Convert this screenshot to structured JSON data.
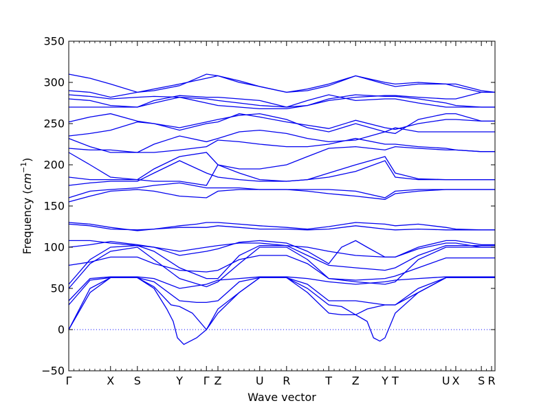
{
  "chart_data": {
    "type": "line",
    "xlabel": "Wave vector",
    "ylabel": "Frequency",
    "ylabel_unit": "cm",
    "ylabel_exp": "−1",
    "ylim": [
      -50,
      350
    ],
    "yticks": [
      -50,
      0,
      50,
      100,
      150,
      200,
      250,
      300,
      350
    ],
    "grid": false,
    "legend": "none",
    "x_range": [
      0,
      1
    ],
    "high_symmetry_points": [
      {
        "label": "Γ",
        "x": 0.0
      },
      {
        "label": "X",
        "x": 0.098
      },
      {
        "label": "S",
        "x": 0.161
      },
      {
        "label": "Y",
        "x": 0.26
      },
      {
        "label": "Γ",
        "x": 0.323
      },
      {
        "label": "Z",
        "x": 0.35
      },
      {
        "label": "U",
        "x": 0.448
      },
      {
        "label": "R",
        "x": 0.511
      },
      {
        "label": "T",
        "x": 0.61
      },
      {
        "label": "Z",
        "x": 0.673
      },
      {
        "label": "Y",
        "x": 0.742
      },
      {
        "label": "T",
        "x": 0.766
      },
      {
        "label": "U",
        "x": 0.885
      },
      {
        "label": "X",
        "x": 0.908
      },
      {
        "label": "S",
        "x": 0.968
      },
      {
        "label": "R",
        "x": 0.992
      }
    ],
    "zero_line": 0,
    "colors": {
      "bands": "#0000ee",
      "zero_line": "#0000ff"
    },
    "series": [
      {
        "x": [
          0,
          0.05,
          0.098,
          0.161,
          0.2,
          0.24,
          0.26,
          0.29,
          0.323,
          0.35,
          0.4,
          0.448,
          0.511,
          0.56,
          0.61,
          0.64,
          0.673,
          0.7,
          0.742,
          0.766,
          0.82,
          0.885,
          0.908,
          0.968,
          1.0
        ],
        "y": [
          0,
          45,
          63,
          63,
          52,
          30,
          28,
          20,
          0,
          25,
          45,
          63,
          63,
          50,
          30,
          28,
          18,
          25,
          30,
          30,
          45,
          63,
          63,
          63,
          63
        ]
      },
      {
        "x": [
          0,
          0.05,
          0.098,
          0.161,
          0.2,
          0.23,
          0.245,
          0.255,
          0.27,
          0.3,
          0.323,
          0.35,
          0.4,
          0.448,
          0.511,
          0.56,
          0.61,
          0.64,
          0.673,
          0.7,
          0.715,
          0.73,
          0.742,
          0.766,
          0.82,
          0.885,
          0.908,
          0.968,
          1.0
        ],
        "y": [
          0,
          50,
          63,
          63,
          50,
          25,
          10,
          -10,
          -18,
          -10,
          0,
          20,
          45,
          63,
          63,
          45,
          20,
          18,
          18,
          10,
          -10,
          -14,
          -10,
          20,
          45,
          63,
          63,
          63,
          63
        ]
      },
      {
        "x": [
          0,
          0.05,
          0.098,
          0.161,
          0.2,
          0.26,
          0.3,
          0.323,
          0.35,
          0.4,
          0.448,
          0.511,
          0.56,
          0.61,
          0.673,
          0.742,
          0.766,
          0.82,
          0.885,
          0.908,
          0.968,
          1.0
        ],
        "y": [
          30,
          60,
          63,
          63,
          58,
          35,
          33,
          33,
          35,
          58,
          63,
          63,
          55,
          35,
          35,
          30,
          30,
          50,
          63,
          63,
          63,
          63
        ]
      },
      {
        "x": [
          0,
          0.05,
          0.098,
          0.161,
          0.2,
          0.26,
          0.323,
          0.35,
          0.4,
          0.448,
          0.511,
          0.56,
          0.61,
          0.673,
          0.742,
          0.766,
          0.82,
          0.885,
          0.908,
          0.968,
          1.0
        ],
        "y": [
          35,
          62,
          64,
          64,
          62,
          50,
          55,
          60,
          62,
          64,
          64,
          62,
          58,
          55,
          58,
          60,
          62,
          64,
          64,
          64,
          64
        ]
      },
      {
        "x": [
          0,
          0.05,
          0.098,
          0.161,
          0.2,
          0.26,
          0.323,
          0.35,
          0.4,
          0.448,
          0.511,
          0.56,
          0.61,
          0.673,
          0.742,
          0.766,
          0.82,
          0.885,
          0.908,
          0.968,
          1.0
        ],
        "y": [
          50,
          80,
          95,
          100,
          85,
          62,
          52,
          58,
          80,
          100,
          100,
          85,
          62,
          58,
          55,
          58,
          85,
          100,
          100,
          100,
          100
        ]
      },
      {
        "x": [
          0,
          0.05,
          0.098,
          0.161,
          0.2,
          0.26,
          0.323,
          0.35,
          0.4,
          0.448,
          0.511,
          0.56,
          0.61,
          0.673,
          0.742,
          0.766,
          0.82,
          0.885,
          0.908,
          0.968,
          1.0
        ],
        "y": [
          55,
          85,
          100,
          102,
          95,
          75,
          62,
          62,
          90,
          102,
          102,
          90,
          78,
          75,
          72,
          75,
          90,
          102,
          102,
          102,
          102
        ]
      },
      {
        "x": [
          0,
          0.05,
          0.098,
          0.161,
          0.2,
          0.26,
          0.323,
          0.35,
          0.4,
          0.448,
          0.511,
          0.56,
          0.61,
          0.673,
          0.742,
          0.766,
          0.82,
          0.885,
          0.908,
          0.968,
          1.0
        ],
        "y": [
          78,
          82,
          88,
          88,
          80,
          72,
          70,
          72,
          85,
          90,
          90,
          80,
          62,
          60,
          62,
          65,
          75,
          87,
          87,
          87,
          87
        ]
      },
      {
        "x": [
          0,
          0.05,
          0.098,
          0.161,
          0.2,
          0.26,
          0.323,
          0.35,
          0.4,
          0.448,
          0.511,
          0.56,
          0.61,
          0.64,
          0.673,
          0.7,
          0.742,
          0.766,
          0.82,
          0.885,
          0.908,
          0.968,
          1.0
        ],
        "y": [
          100,
          103,
          107,
          103,
          100,
          90,
          95,
          98,
          106,
          108,
          105,
          95,
          80,
          100,
          108,
          100,
          88,
          88,
          100,
          108,
          108,
          103,
          103
        ]
      },
      {
        "x": [
          0,
          0.05,
          0.098,
          0.161,
          0.2,
          0.26,
          0.323,
          0.35,
          0.4,
          0.448,
          0.511,
          0.56,
          0.61,
          0.673,
          0.742,
          0.766,
          0.82,
          0.885,
          0.908,
          0.968,
          1.0
        ],
        "y": [
          108,
          108,
          105,
          102,
          100,
          95,
          100,
          102,
          105,
          105,
          102,
          100,
          95,
          90,
          88,
          88,
          98,
          105,
          105,
          100,
          100
        ]
      },
      {
        "x": [
          0,
          0.05,
          0.098,
          0.161,
          0.2,
          0.26,
          0.3,
          0.323,
          0.35,
          0.4,
          0.448,
          0.511,
          0.56,
          0.61,
          0.673,
          0.742,
          0.766,
          0.82,
          0.885,
          0.908,
          0.968,
          1.0
        ],
        "y": [
          130,
          128,
          124,
          120,
          122,
          126,
          128,
          130,
          130,
          128,
          126,
          124,
          122,
          125,
          130,
          128,
          126,
          128,
          124,
          122,
          121,
          121
        ]
      },
      {
        "x": [
          0,
          0.05,
          0.098,
          0.161,
          0.2,
          0.26,
          0.323,
          0.35,
          0.4,
          0.448,
          0.511,
          0.56,
          0.61,
          0.673,
          0.742,
          0.766,
          0.82,
          0.885,
          0.908,
          0.968,
          1.0
        ],
        "y": [
          128,
          126,
          122,
          121,
          122,
          124,
          124,
          126,
          124,
          122,
          122,
          121,
          122,
          126,
          122,
          121,
          122,
          121,
          121,
          121,
          121
        ]
      },
      {
        "x": [
          0,
          0.05,
          0.098,
          0.161,
          0.2,
          0.26,
          0.323,
          0.35,
          0.4,
          0.448,
          0.511,
          0.56,
          0.61,
          0.673,
          0.742,
          0.766,
          0.82,
          0.885,
          0.908,
          0.968,
          1.0
        ],
        "y": [
          155,
          162,
          168,
          170,
          168,
          162,
          160,
          168,
          170,
          170,
          170,
          168,
          165,
          162,
          158,
          165,
          168,
          170,
          170,
          170,
          170
        ]
      },
      {
        "x": [
          0,
          0.05,
          0.098,
          0.161,
          0.2,
          0.26,
          0.323,
          0.35,
          0.4,
          0.448,
          0.511,
          0.56,
          0.61,
          0.673,
          0.742,
          0.766,
          0.82,
          0.885,
          0.908,
          0.968,
          1.0
        ],
        "y": [
          160,
          168,
          170,
          172,
          175,
          178,
          172,
          172,
          172,
          170,
          170,
          170,
          170,
          168,
          160,
          168,
          170,
          170,
          170,
          170,
          170
        ]
      },
      {
        "x": [
          0,
          0.05,
          0.098,
          0.161,
          0.2,
          0.26,
          0.323,
          0.35,
          0.4,
          0.448,
          0.511,
          0.56,
          0.61,
          0.673,
          0.742,
          0.766,
          0.82,
          0.885,
          0.908,
          0.968,
          1.0
        ],
        "y": [
          175,
          178,
          180,
          180,
          190,
          205,
          190,
          185,
          182,
          180,
          180,
          182,
          185,
          192,
          205,
          185,
          182,
          182,
          182,
          182,
          182
        ]
      },
      {
        "x": [
          0,
          0.05,
          0.098,
          0.161,
          0.2,
          0.26,
          0.323,
          0.35,
          0.4,
          0.448,
          0.511,
          0.56,
          0.61,
          0.673,
          0.742,
          0.766,
          0.82,
          0.885,
          0.908,
          0.968,
          1.0
        ],
        "y": [
          185,
          182,
          182,
          182,
          180,
          180,
          175,
          200,
          190,
          182,
          180,
          182,
          190,
          200,
          210,
          190,
          183,
          182,
          182,
          182,
          182
        ]
      },
      {
        "x": [
          0,
          0.05,
          0.098,
          0.161,
          0.2,
          0.26,
          0.323,
          0.35,
          0.4,
          0.448,
          0.511,
          0.56,
          0.61,
          0.673,
          0.742,
          0.766,
          0.82,
          0.885,
          0.908,
          0.968,
          1.0
        ],
        "y": [
          215,
          200,
          185,
          182,
          195,
          210,
          215,
          200,
          195,
          195,
          200,
          210,
          220,
          222,
          218,
          222,
          220,
          218,
          218,
          216,
          216
        ]
      },
      {
        "x": [
          0,
          0.05,
          0.098,
          0.161,
          0.2,
          0.26,
          0.323,
          0.35,
          0.4,
          0.448,
          0.511,
          0.56,
          0.61,
          0.673,
          0.742,
          0.766,
          0.82,
          0.885,
          0.908,
          0.968,
          1.0
        ],
        "y": [
          220,
          218,
          218,
          215,
          215,
          218,
          222,
          230,
          228,
          225,
          222,
          222,
          225,
          232,
          225,
          225,
          222,
          220,
          218,
          216,
          216
        ]
      },
      {
        "x": [
          0,
          0.05,
          0.098,
          0.161,
          0.2,
          0.26,
          0.323,
          0.35,
          0.4,
          0.448,
          0.511,
          0.56,
          0.61,
          0.673,
          0.742,
          0.766,
          0.82,
          0.885,
          0.908,
          0.968,
          1.0
        ],
        "y": [
          232,
          222,
          215,
          215,
          225,
          235,
          228,
          232,
          240,
          242,
          238,
          232,
          228,
          230,
          240,
          245,
          240,
          240,
          240,
          240,
          240
        ]
      },
      {
        "x": [
          0,
          0.05,
          0.098,
          0.161,
          0.2,
          0.26,
          0.323,
          0.35,
          0.4,
          0.448,
          0.511,
          0.56,
          0.61,
          0.673,
          0.742,
          0.766,
          0.82,
          0.885,
          0.908,
          0.968,
          1.0
        ],
        "y": [
          235,
          238,
          242,
          252,
          250,
          245,
          252,
          255,
          260,
          262,
          255,
          245,
          240,
          250,
          240,
          238,
          255,
          262,
          262,
          253,
          253
        ]
      },
      {
        "x": [
          0,
          0.05,
          0.098,
          0.161,
          0.2,
          0.26,
          0.323,
          0.35,
          0.4,
          0.448,
          0.511,
          0.56,
          0.61,
          0.673,
          0.742,
          0.766,
          0.82,
          0.885,
          0.908,
          0.968,
          1.0
        ],
        "y": [
          252,
          258,
          262,
          253,
          250,
          242,
          250,
          252,
          262,
          258,
          252,
          248,
          244,
          254,
          245,
          243,
          250,
          255,
          255,
          253,
          253
        ]
      },
      {
        "x": [
          0,
          0.05,
          0.098,
          0.161,
          0.2,
          0.26,
          0.323,
          0.35,
          0.4,
          0.448,
          0.511,
          0.56,
          0.61,
          0.673,
          0.742,
          0.766,
          0.82,
          0.885,
          0.908,
          0.968,
          1.0
        ],
        "y": [
          270,
          270,
          270,
          270,
          275,
          282,
          275,
          272,
          270,
          268,
          268,
          272,
          280,
          285,
          283,
          283,
          280,
          275,
          272,
          270,
          270
        ]
      },
      {
        "x": [
          0,
          0.05,
          0.098,
          0.161,
          0.2,
          0.26,
          0.323,
          0.35,
          0.4,
          0.448,
          0.511,
          0.56,
          0.61,
          0.673,
          0.742,
          0.766,
          0.82,
          0.885,
          0.908,
          0.968,
          1.0
        ],
        "y": [
          280,
          278,
          272,
          270,
          278,
          284,
          282,
          282,
          280,
          278,
          270,
          272,
          278,
          282,
          284,
          284,
          282,
          280,
          280,
          288,
          288
        ]
      },
      {
        "x": [
          0,
          0.05,
          0.098,
          0.161,
          0.2,
          0.26,
          0.323,
          0.35,
          0.4,
          0.448,
          0.511,
          0.56,
          0.61,
          0.673,
          0.742,
          0.766,
          0.82,
          0.885,
          0.908,
          0.968,
          1.0
        ],
        "y": [
          285,
          283,
          280,
          282,
          283,
          282,
          280,
          278,
          275,
          272,
          270,
          278,
          285,
          278,
          280,
          280,
          275,
          270,
          270,
          270,
          270
        ]
      },
      {
        "x": [
          0,
          0.05,
          0.098,
          0.161,
          0.2,
          0.26,
          0.323,
          0.35,
          0.4,
          0.448,
          0.511,
          0.56,
          0.61,
          0.673,
          0.742,
          0.766,
          0.82,
          0.885,
          0.908,
          0.968,
          1.0
        ],
        "y": [
          290,
          288,
          282,
          288,
          292,
          298,
          305,
          308,
          302,
          295,
          288,
          292,
          298,
          308,
          298,
          295,
          298,
          298,
          298,
          290,
          288
        ]
      },
      {
        "x": [
          0,
          0.05,
          0.098,
          0.161,
          0.2,
          0.26,
          0.323,
          0.35,
          0.4,
          0.448,
          0.511,
          0.56,
          0.61,
          0.673,
          0.742,
          0.766,
          0.82,
          0.885,
          0.908,
          0.968,
          1.0
        ],
        "y": [
          310,
          305,
          298,
          288,
          290,
          296,
          310,
          308,
          300,
          295,
          288,
          290,
          296,
          308,
          300,
          298,
          300,
          298,
          295,
          288,
          288
        ]
      }
    ]
  }
}
